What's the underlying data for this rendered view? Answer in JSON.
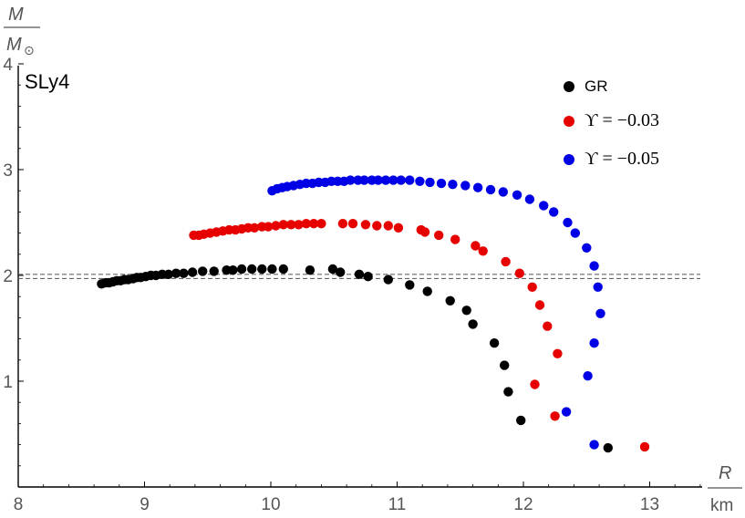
{
  "chart_data": {
    "type": "scatter",
    "title": "SLy4",
    "xlabel": "R",
    "xunit": "km",
    "ylabel": "M",
    "yunit": "M",
    "yunit_sub": "⊙",
    "xlim": [
      8,
      13.5
    ],
    "ylim": [
      0,
      4
    ],
    "xticks": [
      "8",
      "9",
      "10",
      "11",
      "12",
      "13"
    ],
    "yticks": [
      "1",
      "2",
      "3",
      "4"
    ],
    "reference_lines": [
      2.01,
      1.97
    ],
    "legend_position": "top-right",
    "series": [
      {
        "name": "GR",
        "color": "#000000",
        "points": [
          [
            8.66,
            1.92
          ],
          [
            8.69,
            1.93
          ],
          [
            8.72,
            1.93
          ],
          [
            8.75,
            1.94
          ],
          [
            8.78,
            1.95
          ],
          [
            8.81,
            1.95
          ],
          [
            8.84,
            1.96
          ],
          [
            8.87,
            1.96
          ],
          [
            8.91,
            1.97
          ],
          [
            8.94,
            1.98
          ],
          [
            8.97,
            1.98
          ],
          [
            9.01,
            1.99
          ],
          [
            9.05,
            2.0
          ],
          [
            9.09,
            2.0
          ],
          [
            9.14,
            2.01
          ],
          [
            9.19,
            2.01
          ],
          [
            9.25,
            2.02
          ],
          [
            9.31,
            2.02
          ],
          [
            9.38,
            2.03
          ],
          [
            9.46,
            2.04
          ],
          [
            9.55,
            2.04
          ],
          [
            9.65,
            2.05
          ],
          [
            9.7,
            2.05
          ],
          [
            9.77,
            2.06
          ],
          [
            9.85,
            2.06
          ],
          [
            9.93,
            2.06
          ],
          [
            10.01,
            2.06
          ],
          [
            10.1,
            2.06
          ],
          [
            10.31,
            2.05
          ],
          [
            10.49,
            2.06
          ],
          [
            10.55,
            2.03
          ],
          [
            10.7,
            2.01
          ],
          [
            10.77,
            1.99
          ],
          [
            10.93,
            1.96
          ],
          [
            11.1,
            1.91
          ],
          [
            11.24,
            1.85
          ],
          [
            11.42,
            1.76
          ],
          [
            11.55,
            1.67
          ],
          [
            11.6,
            1.54
          ],
          [
            11.77,
            1.36
          ],
          [
            11.85,
            1.15
          ],
          [
            11.88,
            0.9
          ],
          [
            11.98,
            0.63
          ],
          [
            12.67,
            0.37
          ]
        ]
      },
      {
        "name": "ϒ = −0.03",
        "color": "#e60000",
        "points": [
          [
            9.39,
            2.38
          ],
          [
            9.43,
            2.38
          ],
          [
            9.47,
            2.39
          ],
          [
            9.52,
            2.4
          ],
          [
            9.57,
            2.41
          ],
          [
            9.62,
            2.42
          ],
          [
            9.67,
            2.43
          ],
          [
            9.72,
            2.43
          ],
          [
            9.77,
            2.44
          ],
          [
            9.82,
            2.45
          ],
          [
            9.87,
            2.45
          ],
          [
            9.93,
            2.46
          ],
          [
            9.98,
            2.46
          ],
          [
            10.04,
            2.47
          ],
          [
            10.1,
            2.48
          ],
          [
            10.16,
            2.48
          ],
          [
            10.22,
            2.48
          ],
          [
            10.28,
            2.49
          ],
          [
            10.34,
            2.49
          ],
          [
            10.4,
            2.49
          ],
          [
            10.57,
            2.49
          ],
          [
            10.65,
            2.49
          ],
          [
            10.75,
            2.48
          ],
          [
            10.84,
            2.47
          ],
          [
            10.93,
            2.47
          ],
          [
            11.01,
            2.45
          ],
          [
            11.19,
            2.43
          ],
          [
            11.22,
            2.41
          ],
          [
            11.33,
            2.38
          ],
          [
            11.46,
            2.34
          ],
          [
            11.62,
            2.28
          ],
          [
            11.68,
            2.23
          ],
          [
            11.86,
            2.13
          ],
          [
            11.97,
            2.02
          ],
          [
            12.07,
            1.89
          ],
          [
            12.13,
            1.72
          ],
          [
            12.19,
            1.52
          ],
          [
            12.27,
            1.26
          ],
          [
            12.09,
            0.97
          ],
          [
            12.25,
            0.67
          ],
          [
            12.96,
            0.38
          ]
        ]
      },
      {
        "name": "ϒ = −0.05",
        "color": "#0000e6",
        "points": [
          [
            10.01,
            2.8
          ],
          [
            10.05,
            2.82
          ],
          [
            10.09,
            2.83
          ],
          [
            10.13,
            2.84
          ],
          [
            10.18,
            2.85
          ],
          [
            10.23,
            2.86
          ],
          [
            10.28,
            2.87
          ],
          [
            10.33,
            2.87
          ],
          [
            10.38,
            2.88
          ],
          [
            10.43,
            2.88
          ],
          [
            10.48,
            2.89
          ],
          [
            10.53,
            2.89
          ],
          [
            10.58,
            2.89
          ],
          [
            10.63,
            2.9
          ],
          [
            10.69,
            2.9
          ],
          [
            10.74,
            2.9
          ],
          [
            10.8,
            2.9
          ],
          [
            10.85,
            2.9
          ],
          [
            10.91,
            2.9
          ],
          [
            10.97,
            2.9
          ],
          [
            11.03,
            2.9
          ],
          [
            11.1,
            2.9
          ],
          [
            11.18,
            2.89
          ],
          [
            11.26,
            2.88
          ],
          [
            11.35,
            2.87
          ],
          [
            11.44,
            2.86
          ],
          [
            11.54,
            2.85
          ],
          [
            11.64,
            2.83
          ],
          [
            11.74,
            2.81
          ],
          [
            11.84,
            2.79
          ],
          [
            11.95,
            2.76
          ],
          [
            12.05,
            2.72
          ],
          [
            12.16,
            2.66
          ],
          [
            12.24,
            2.6
          ],
          [
            12.35,
            2.5
          ],
          [
            12.41,
            2.4
          ],
          [
            12.5,
            2.26
          ],
          [
            12.56,
            2.09
          ],
          [
            12.59,
            1.89
          ],
          [
            12.61,
            1.64
          ],
          [
            12.56,
            1.36
          ],
          [
            12.51,
            1.05
          ],
          [
            12.34,
            0.71
          ],
          [
            12.56,
            0.4
          ]
        ]
      }
    ]
  }
}
